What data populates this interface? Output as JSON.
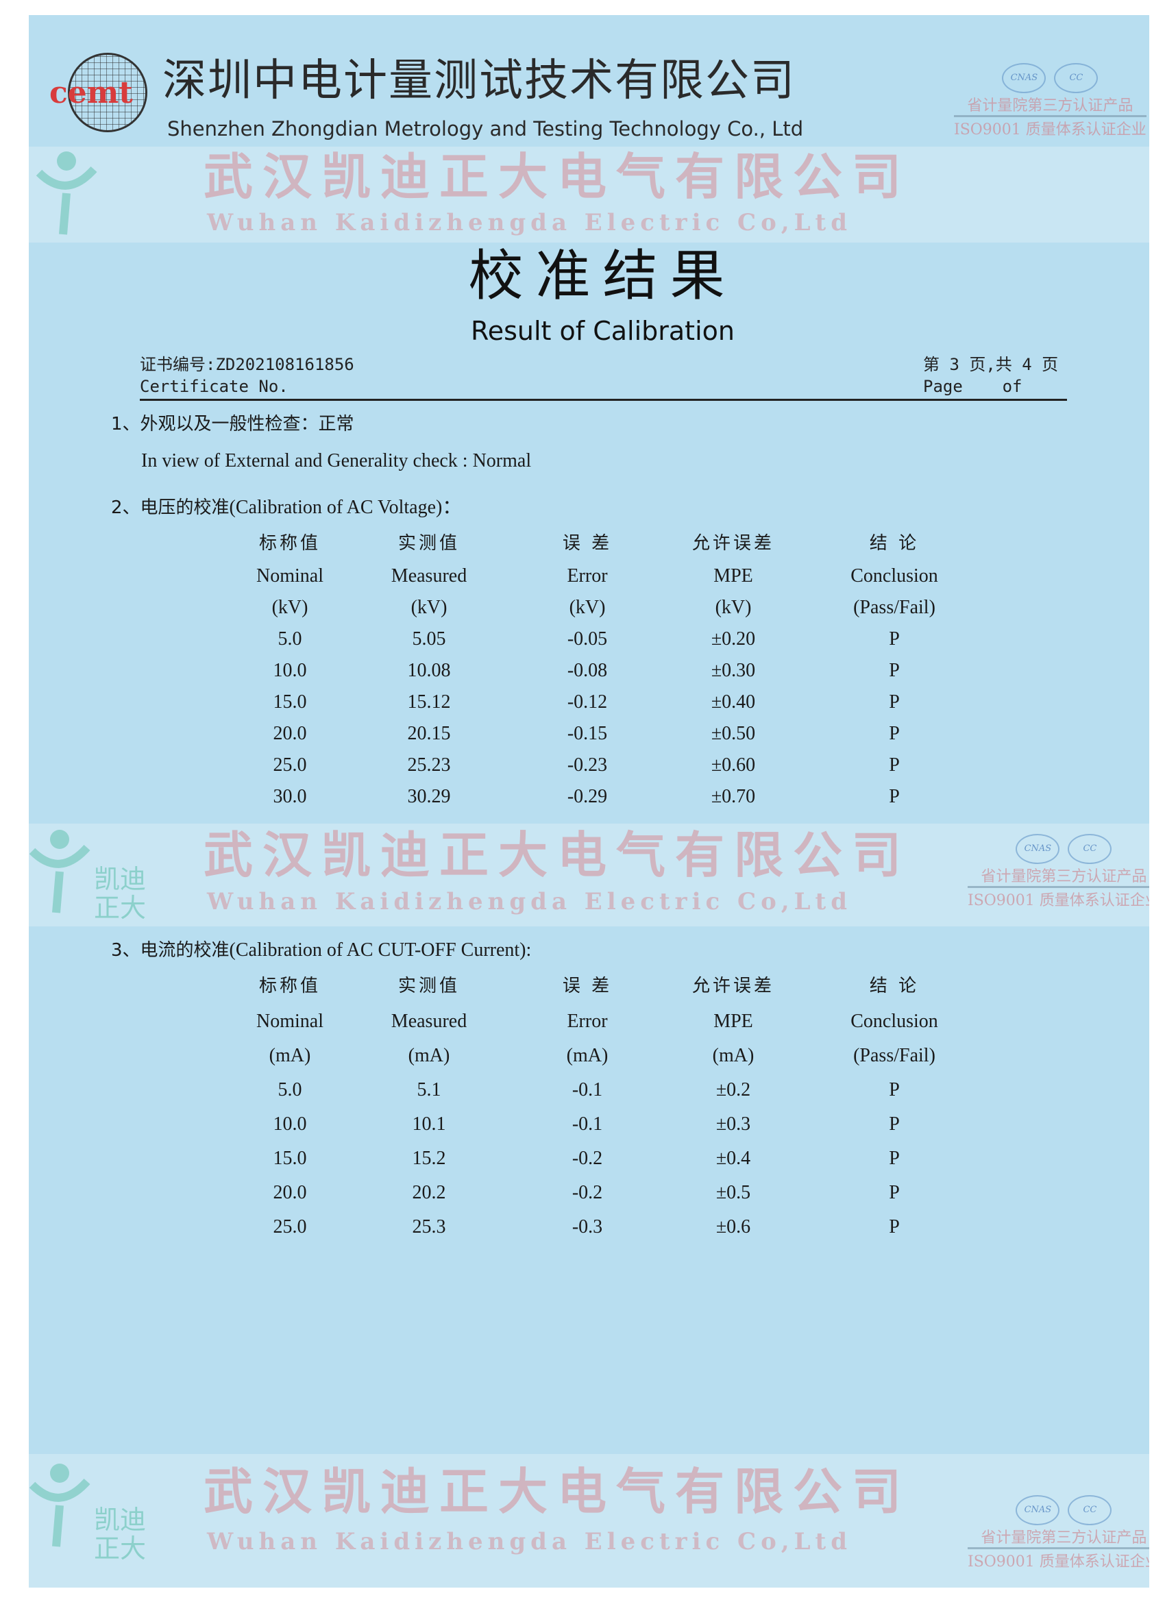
{
  "header": {
    "logo_text": "cemt",
    "company_cn": "深圳中电计量测试技术有限公司",
    "company_en": "Shenzhen Zhongdian Metrology and Testing Technology Co., Ltd"
  },
  "watermark": {
    "company_cn": "武汉凯迪正大电气有限公司",
    "company_en": "Wuhan Kaidizhengda Electric Co,Ltd",
    "logo_cn": "凯迪正大",
    "cert_line1": "省计量院第三方认证产品",
    "cert_line2": "ISO9001 质量体系认证企业",
    "badge1": "CNAS",
    "badge2": "CC"
  },
  "title": {
    "cn": "校准结果",
    "en": "Result of Calibration"
  },
  "certificate": {
    "label_cn": "证书编号:",
    "number": "ZD202108161856",
    "label_en": "Certificate No.",
    "page_cn": "第 3 页,共 4 页",
    "page_en": "Page    of"
  },
  "section1": {
    "heading": "1、外观以及一般性检查：正常",
    "english": "In view of External and Generality check : Normal"
  },
  "section2": {
    "heading_cn": "2、电压的校准",
    "heading_en": "(Calibration of AC Voltage)：",
    "headers_cn": [
      "标称值",
      "实测值",
      "误 差",
      "允许误差",
      "结  论"
    ],
    "headers_en": [
      "Nominal",
      "Measured",
      "Error",
      "MPE",
      "Conclusion"
    ],
    "units": [
      "(kV)",
      "(kV)",
      "(kV)",
      "(kV)",
      "(Pass/Fail)"
    ],
    "rows": [
      [
        "5.0",
        "5.05",
        "-0.05",
        "±0.20",
        "P"
      ],
      [
        "10.0",
        "10.08",
        "-0.08",
        "±0.30",
        "P"
      ],
      [
        "15.0",
        "15.12",
        "-0.12",
        "±0.40",
        "P"
      ],
      [
        "20.0",
        "20.15",
        "-0.15",
        "±0.50",
        "P"
      ],
      [
        "25.0",
        "25.23",
        "-0.23",
        "±0.60",
        "P"
      ],
      [
        "30.0",
        "30.29",
        "-0.29",
        "±0.70",
        "P"
      ]
    ]
  },
  "section3": {
    "heading_cn": "3、电流的校准",
    "heading_en": "(Calibration of AC CUT-OFF Current):",
    "headers_cn": [
      "标称值",
      "实测值",
      "误 差",
      "允许误差",
      "结  论"
    ],
    "headers_en": [
      "Nominal",
      "Measured",
      "Error",
      "MPE",
      "Conclusion"
    ],
    "units": [
      "(mA)",
      "(mA)",
      "(mA)",
      "(mA)",
      "(Pass/Fail)"
    ],
    "rows": [
      [
        "5.0",
        "5.1",
        "-0.1",
        "±0.2",
        "P"
      ],
      [
        "10.0",
        "10.1",
        "-0.1",
        "±0.3",
        "P"
      ],
      [
        "15.0",
        "15.2",
        "-0.2",
        "±0.4",
        "P"
      ],
      [
        "20.0",
        "20.2",
        "-0.2",
        "±0.5",
        "P"
      ],
      [
        "25.0",
        "25.3",
        "-0.3",
        "±0.6",
        "P"
      ]
    ]
  }
}
